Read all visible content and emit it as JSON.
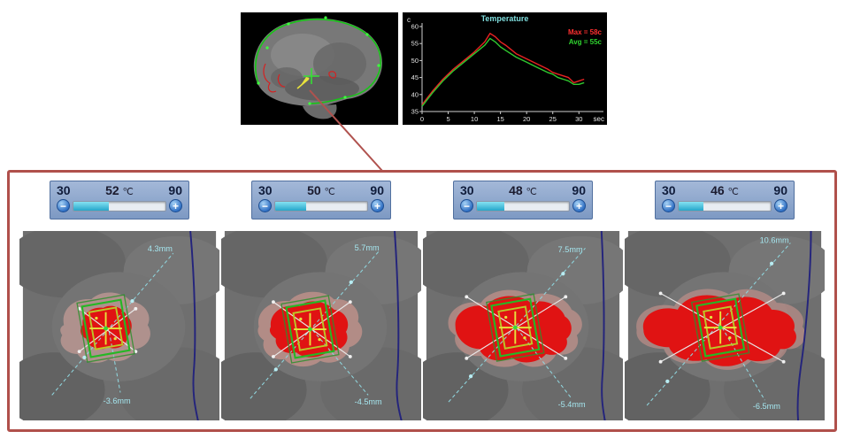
{
  "colors": {
    "panel_border": "#b0504b",
    "lesion_red": "#e01313",
    "target_green": "#25b825",
    "slider_fill": "#2fb4d6",
    "measure_cyan": "#a5e6ef"
  },
  "chart_data": {
    "type": "line",
    "title": "Temperature",
    "y_unit_label": "c",
    "x_unit_label": "sec",
    "xlim": [
      0,
      33
    ],
    "ylim": [
      35,
      60
    ],
    "x_ticks": [
      0,
      5,
      10,
      15,
      20,
      25,
      30
    ],
    "y_ticks": [
      35,
      40,
      45,
      50,
      55,
      60
    ],
    "background": "#000000",
    "legend_position": "top-right",
    "legend": [
      {
        "label": "Max = 58c",
        "color": "#ff3030"
      },
      {
        "label": "Avg = 55c",
        "color": "#2fd32f"
      }
    ],
    "series": [
      {
        "name": "Max",
        "color": "#e82222",
        "points": [
          [
            0,
            37
          ],
          [
            2,
            41
          ],
          [
            4,
            44.5
          ],
          [
            6,
            47.5
          ],
          [
            8,
            50
          ],
          [
            10,
            52.5
          ],
          [
            12,
            55.5
          ],
          [
            13,
            58
          ],
          [
            14,
            57
          ],
          [
            15,
            55.5
          ],
          [
            16,
            54.5
          ],
          [
            18,
            52
          ],
          [
            20,
            50.5
          ],
          [
            22,
            49
          ],
          [
            24,
            47.5
          ],
          [
            25,
            46.5
          ],
          [
            26,
            46
          ],
          [
            27,
            45.5
          ],
          [
            28,
            45
          ],
          [
            29,
            43.5
          ],
          [
            30,
            44
          ],
          [
            31,
            44.5
          ]
        ]
      },
      {
        "name": "Avg",
        "color": "#2fc82f",
        "points": [
          [
            0,
            36.5
          ],
          [
            2,
            40.5
          ],
          [
            4,
            44
          ],
          [
            6,
            47
          ],
          [
            8,
            49.5
          ],
          [
            10,
            52
          ],
          [
            12,
            54.5
          ],
          [
            13,
            56.5
          ],
          [
            14,
            55.5
          ],
          [
            15,
            54
          ],
          [
            16,
            53
          ],
          [
            18,
            51
          ],
          [
            20,
            49.5
          ],
          [
            22,
            48
          ],
          [
            24,
            46.5
          ],
          [
            25,
            46
          ],
          [
            26,
            45
          ],
          [
            27,
            44.5
          ],
          [
            28,
            44
          ],
          [
            29,
            43
          ],
          [
            30,
            43
          ],
          [
            31,
            43.5
          ]
        ]
      }
    ]
  },
  "panel": {
    "columns": [
      {
        "slider": {
          "min": "30",
          "max": "90",
          "value": "52",
          "unit": "℃",
          "fill_pct": 38,
          "minus_label": "−",
          "plus_label": "+"
        },
        "measurements": {
          "top": "4.3mm",
          "bottom": "-3.6mm"
        }
      },
      {
        "slider": {
          "min": "30",
          "max": "90",
          "value": "50",
          "unit": "℃",
          "fill_pct": 34,
          "minus_label": "−",
          "plus_label": "+"
        },
        "measurements": {
          "top": "5.7mm",
          "bottom": "-4.5mm"
        }
      },
      {
        "slider": {
          "min": "30",
          "max": "90",
          "value": "48",
          "unit": "℃",
          "fill_pct": 30,
          "minus_label": "−",
          "plus_label": "+"
        },
        "measurements": {
          "top": "7.5mm",
          "bottom": "-5.4mm"
        }
      },
      {
        "slider": {
          "min": "30",
          "max": "90",
          "value": "46",
          "unit": "℃",
          "fill_pct": 27,
          "minus_label": "−",
          "plus_label": "+"
        },
        "measurements": {
          "top": "10.6mm",
          "bottom": "-6.5mm"
        }
      }
    ]
  }
}
